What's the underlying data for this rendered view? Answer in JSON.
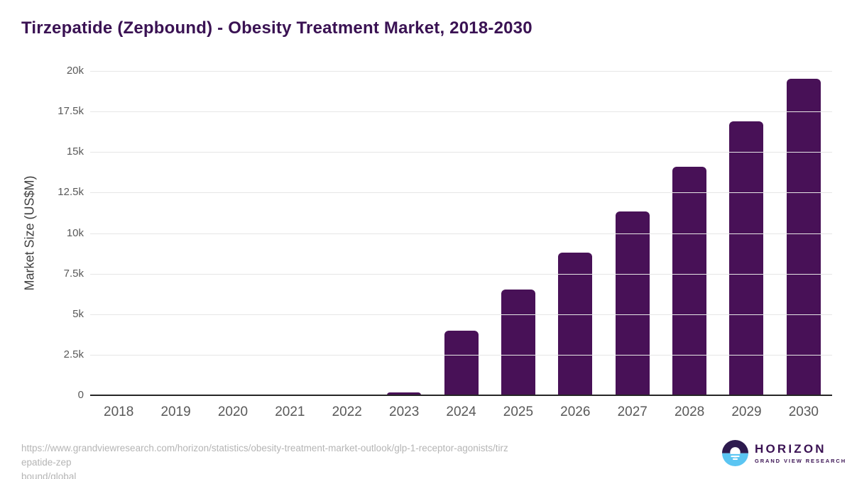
{
  "page": {
    "title": "Tirzepatide (Zepbound) - Obesity Treatment Market, 2018-2030"
  },
  "chart_data": {
    "type": "bar",
    "title": "Tirzepatide (Zepbound) - Obesity Treatment Market, 2018-2030",
    "xlabel": "",
    "ylabel": "Market Size (US$M)",
    "categories": [
      "2018",
      "2019",
      "2020",
      "2021",
      "2022",
      "2023",
      "2024",
      "2025",
      "2026",
      "2027",
      "2028",
      "2029",
      "2030"
    ],
    "values": [
      0,
      0,
      0,
      0,
      0,
      176,
      4000,
      6500,
      8800,
      11350,
      14100,
      16900,
      19530
    ],
    "ylim": [
      0,
      20000
    ],
    "yticks": {
      "values": [
        0,
        2500,
        5000,
        7500,
        10000,
        12500,
        15000,
        17500,
        20000
      ],
      "labels": [
        "0",
        "2.5k",
        "5k",
        "7.5k",
        "10k",
        "12.5k",
        "15k",
        "17.5k",
        "20k"
      ]
    },
    "grid": "horizontal",
    "legend": "none",
    "bar_color": "#481157"
  },
  "colors": {
    "bar": "#481157",
    "title_text": "#3a1253",
    "axis_text": "#595959",
    "gridline": "#e6e6e6",
    "baseline": "#262626",
    "source_text": "#b5b5b5",
    "logo_purple": "#2d1a4e",
    "logo_blue": "#5bc5f2"
  },
  "footer": {
    "source_url_line1": "https://www.grandviewresearch.com/horizon/statistics/obesity-treatment-market-outlook/glp-1-receptor-agonists/tirzepatide-zep",
    "source_url_line2": "bound/global",
    "logo_name": "HORIZON",
    "logo_subtitle": "GRAND VIEW RESEARCH"
  }
}
